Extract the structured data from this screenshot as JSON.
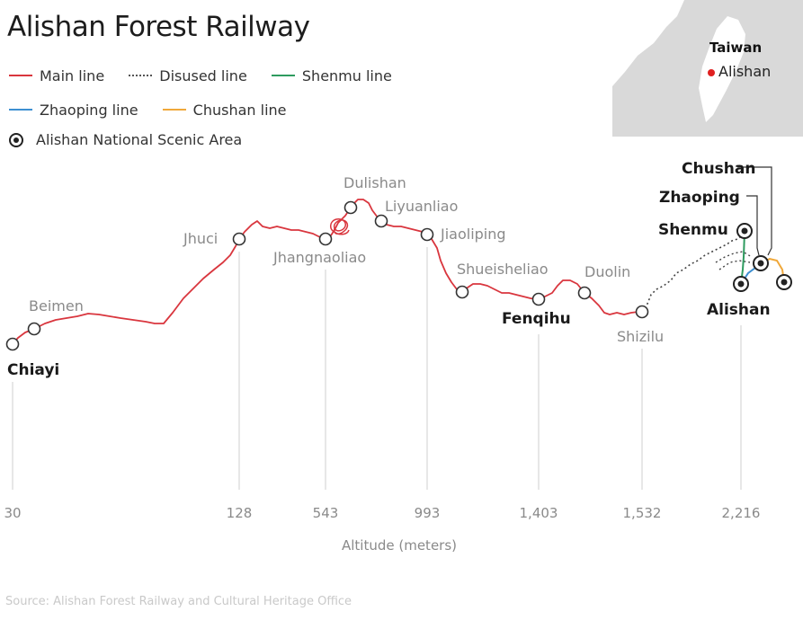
{
  "title": "Alishan Forest Railway",
  "legend": {
    "main_line": "Main line",
    "disused_line": "Disused line",
    "shenmu_line": "Shenmu line",
    "zhaoping_line": "Zhaoping line",
    "chushan_line": "Chushan line",
    "scenic_area": "Alishan National Scenic Area"
  },
  "colors": {
    "main": "#d9363e",
    "disused": "#444444",
    "shenmu": "#2e9b5f",
    "zhaoping": "#3d8fd1",
    "chushan": "#f0a83a",
    "map_bg": "#d9d9d9",
    "map_land": "#ffffff",
    "map_marker": "#e02020"
  },
  "inset_map": {
    "title": "Taiwan",
    "marker_label": "Alishan"
  },
  "stations": {
    "chiayi": "Chiayi",
    "beimen": "Beimen",
    "jhuci": "Jhuci",
    "jhangnaoliao": "Jhangnaoliao",
    "dulishan": "Dulishan",
    "liyuanliao": "Liyuanliao",
    "jiaoliping": "Jiaoliping",
    "shueisheliao": "Shueisheliao",
    "fenqihu": "Fenqihu",
    "duolin": "Duolin",
    "shizilu": "Shizilu",
    "shenmu": "Shenmu",
    "zhaoping": "Zhaoping",
    "chushan": "Chushan",
    "alishan": "Alishan"
  },
  "altitude_ticks": [
    "30",
    "128",
    "543",
    "993",
    "1,403",
    "1,532",
    "2,216"
  ],
  "axis_label": "Altitude (meters)",
  "source": "Source: Alishan Forest Railway and Cultural Heritage Office"
}
